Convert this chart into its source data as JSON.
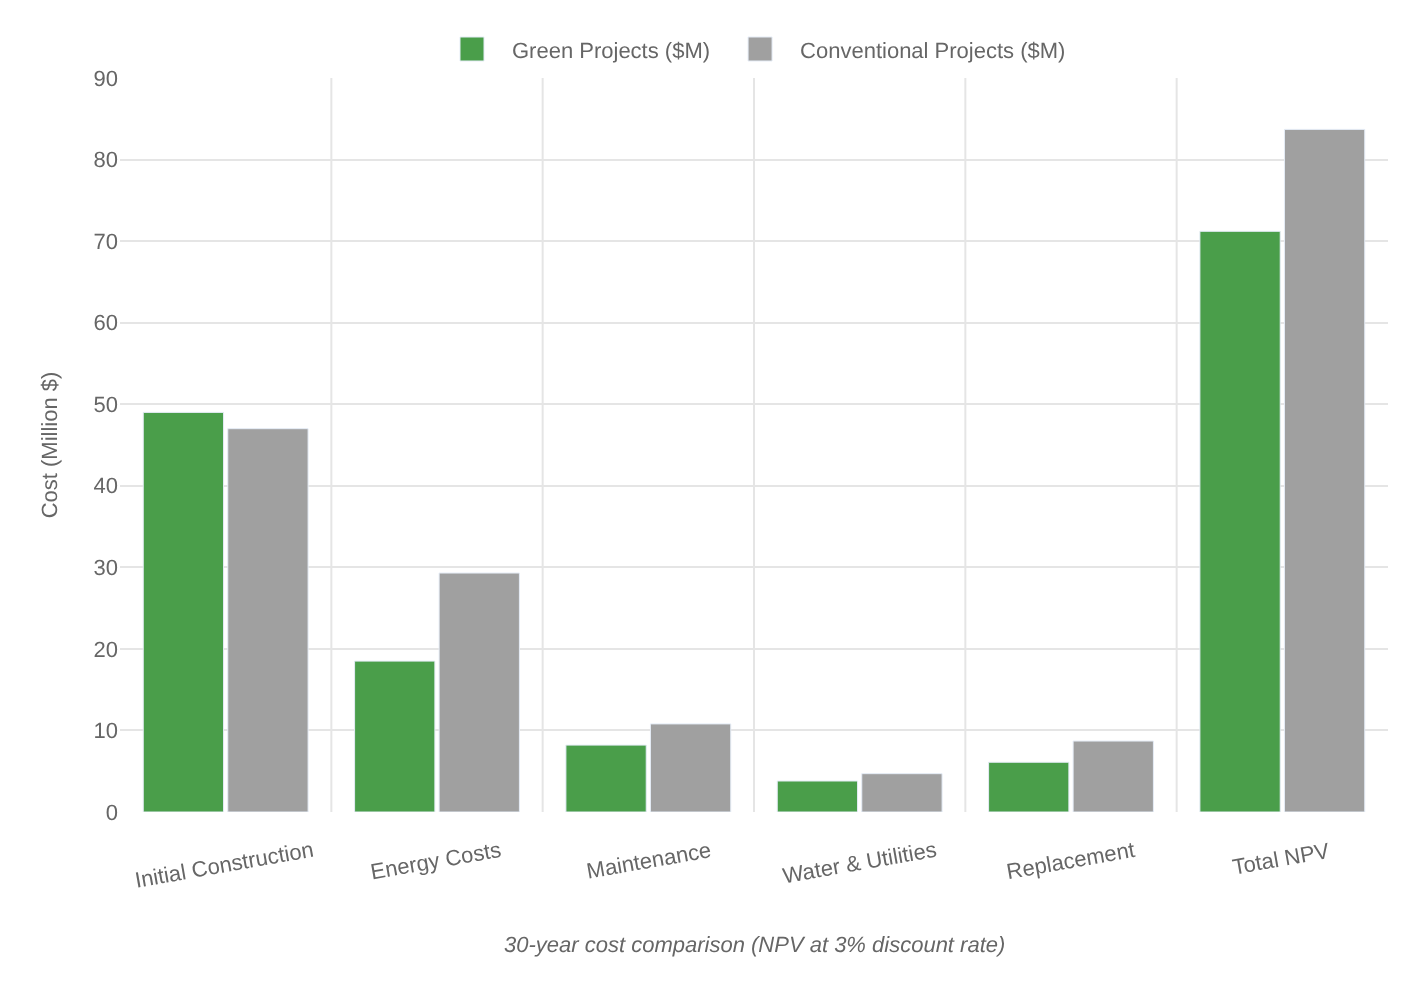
{
  "chart_data": {
    "type": "bar",
    "ylabel": "Cost (Million $)",
    "categories": [
      "Initial Construction",
      "Energy Costs",
      "Maintenance",
      "Water & Utilities",
      "Replacement",
      "Total NPV"
    ],
    "series": [
      {
        "name": "Green Projects ($M)",
        "color": "#4a9e4a",
        "values": [
          49,
          18.5,
          8.2,
          3.8,
          6.1,
          71.2
        ]
      },
      {
        "name": "Conventional Projects ($M)",
        "color": "#a0a0a0",
        "values": [
          47,
          29.3,
          10.8,
          4.7,
          8.7,
          83.7
        ]
      }
    ],
    "ylim": [
      0,
      90
    ],
    "yticks": [
      0,
      10,
      20,
      30,
      40,
      50,
      60,
      70,
      80,
      90
    ],
    "grid": true,
    "legend": "top",
    "annotations": [
      "30-year cost comparison (NPV at 3% discount rate)"
    ]
  }
}
